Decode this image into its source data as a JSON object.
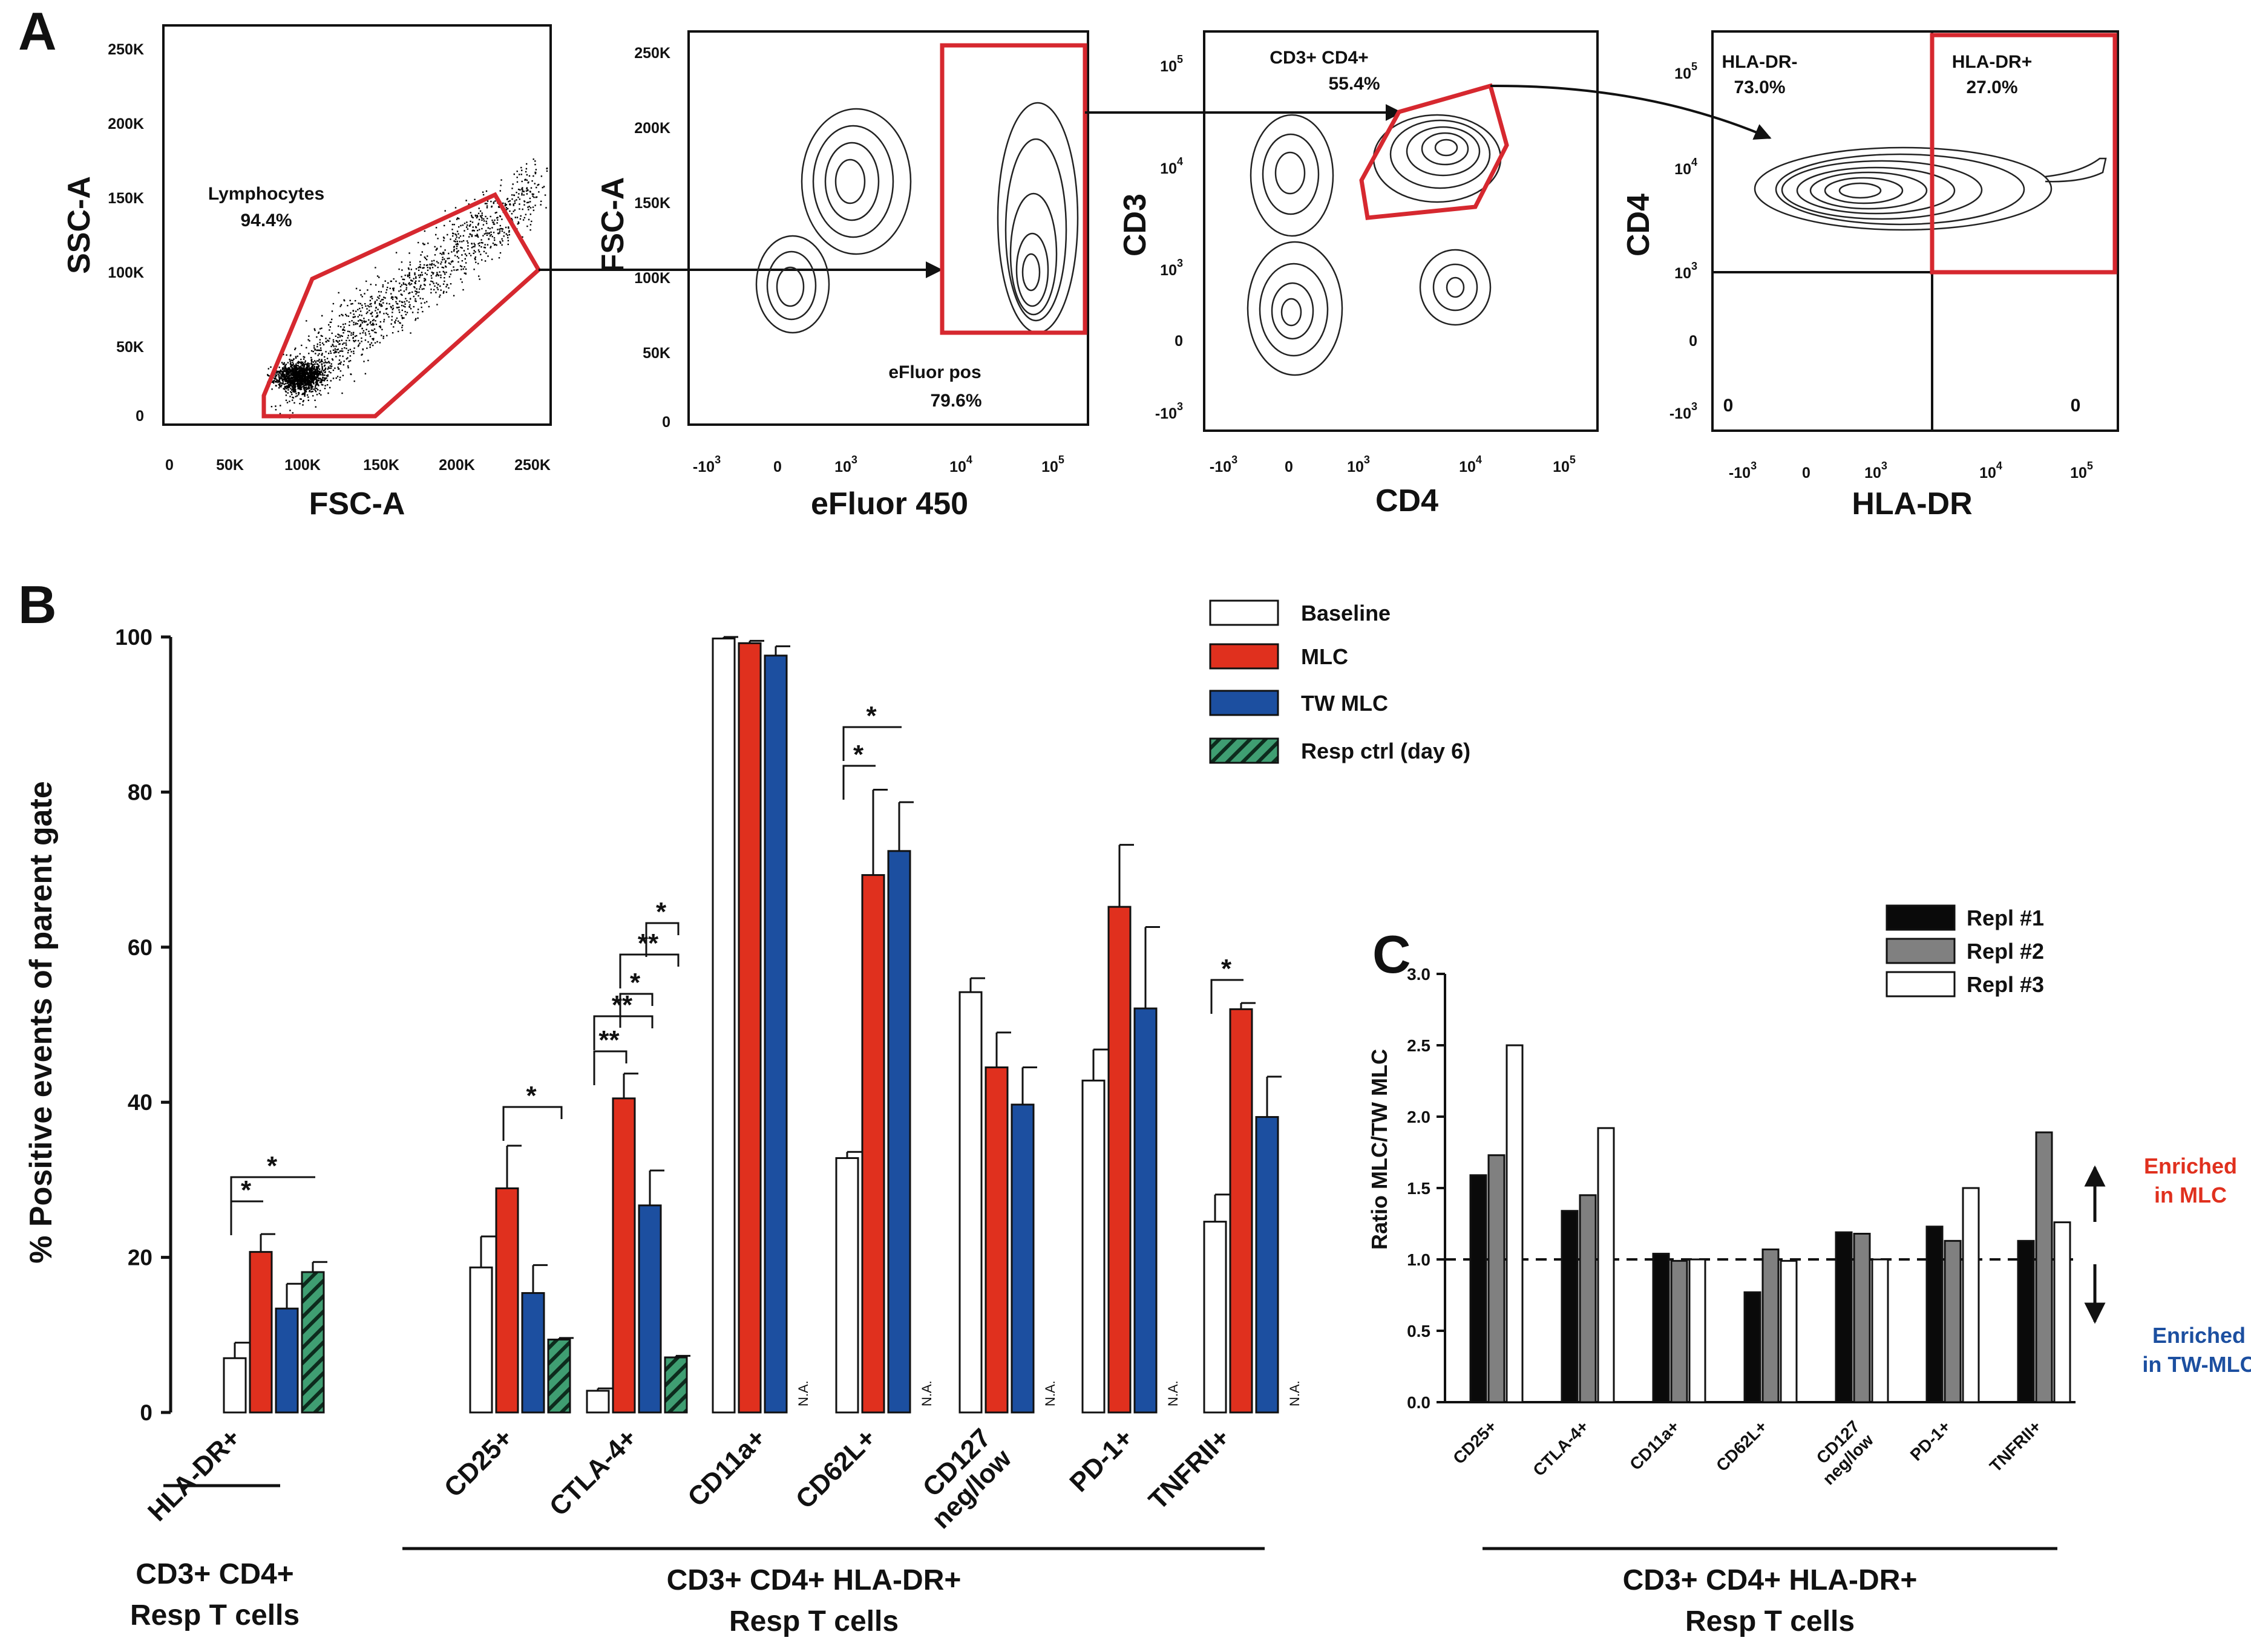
{
  "colors": {
    "baseline": "#ffffff",
    "mlc": "#e0301e",
    "tw_mlc": "#1c4fa0",
    "resp_ctrl": "#3f9e72",
    "gate": "#d6282f",
    "repl1": "#0a0a0a",
    "repl2": "#808080",
    "repl3": "#ffffff",
    "enriched_mlc": "#e0301e",
    "enriched_tw": "#1c4fa0"
  },
  "panel_a": {
    "label": "A",
    "plots": [
      {
        "xlabel": "FSC-A",
        "ylabel": "SSC-A",
        "xticks": [
          "0",
          "50K",
          "100K",
          "150K",
          "200K",
          "250K"
        ],
        "yticks": [
          "250K",
          "200K",
          "150K",
          "100K",
          "50K",
          "0"
        ],
        "gate_name": "Lymphocytes",
        "gate_pct": "94.4%"
      },
      {
        "xlabel": "eFluor 450",
        "ylabel": "FSC-A",
        "xticks": [
          "-10",
          "0",
          "10",
          "10",
          "10"
        ],
        "xtick_exps": [
          "3",
          "",
          "3",
          "4",
          "5"
        ],
        "yticks": [
          "250K",
          "200K",
          "150K",
          "100K",
          "50K",
          "0"
        ],
        "gate_name": "eFluor pos",
        "gate_pct": "79.6%"
      },
      {
        "xlabel": "CD4",
        "ylabel": "CD3",
        "xticks": [
          "-10",
          "0",
          "10",
          "10",
          "10"
        ],
        "xtick_exps": [
          "3",
          "",
          "3",
          "4",
          "5"
        ],
        "yticks": [
          "10",
          "10",
          "10",
          "0",
          "-10"
        ],
        "ytick_exps": [
          "5",
          "4",
          "3",
          "",
          "3"
        ],
        "gate_name": "CD3+ CD4+",
        "gate_pct": "55.4%"
      },
      {
        "xlabel": "HLA-DR",
        "ylabel": "CD4",
        "xticks": [
          "-10",
          "0",
          "10",
          "10",
          "10"
        ],
        "xtick_exps": [
          "3",
          "",
          "3",
          "4",
          "5"
        ],
        "yticks": [
          "10",
          "10",
          "10",
          "0",
          "-10"
        ],
        "ytick_exps": [
          "5",
          "4",
          "3",
          "",
          "3"
        ],
        "q_neg_name": "HLA-DR-",
        "q_neg_pct": "73.0%",
        "q_pos_name": "HLA-DR+",
        "q_pos_pct": "27.0%",
        "q_ll": "0",
        "q_lr": "0"
      }
    ]
  },
  "chart_data": [
    {
      "panel": "B",
      "type": "bar",
      "ylabel": "% Positive events of parent gate",
      "ylim": [
        0,
        100
      ],
      "yticks": [
        "0",
        "20",
        "40",
        "60",
        "80",
        "100"
      ],
      "categories": [
        "HLA-DR+",
        "CD25+",
        "CTLA-4+",
        "CD11a+",
        "CD62L+",
        "CD127 neg/low",
        "PD-1+",
        "TNFRII+"
      ],
      "category_lines": [
        [
          "HLA-DR+"
        ],
        [
          "CD25+"
        ],
        [
          "CTLA-4+"
        ],
        [
          "CD11a+"
        ],
        [
          "CD62L+"
        ],
        [
          "CD127",
          "neg/low"
        ],
        [
          "PD-1+"
        ],
        [
          "TNFRII+"
        ]
      ],
      "series": [
        {
          "name": "Baseline",
          "values": [
            7.0,
            18.7,
            2.8,
            99.8,
            32.8,
            54.2,
            42.8,
            24.6
          ],
          "errors": [
            2.0,
            4.0,
            0.3,
            0.2,
            0.8,
            1.8,
            4.0,
            3.5
          ]
        },
        {
          "name": "MLC",
          "values": [
            20.7,
            28.9,
            40.5,
            99.2,
            69.3,
            44.5,
            65.2,
            52.0
          ],
          "errors": [
            2.3,
            5.5,
            3.2,
            0.3,
            11.0,
            4.5,
            8.0,
            0.8
          ]
        },
        {
          "name": "TW MLC",
          "values": [
            13.4,
            15.4,
            26.7,
            97.6,
            72.4,
            39.7,
            52.1,
            38.1
          ],
          "errors": [
            3.2,
            3.6,
            4.5,
            1.2,
            6.3,
            4.8,
            10.5,
            5.2
          ]
        },
        {
          "name": "Resp ctrl (day 6)",
          "values": [
            18.1,
            9.4,
            7.1,
            null,
            null,
            null,
            null,
            null
          ],
          "errors": [
            1.3,
            0.2,
            0.2,
            null,
            null,
            null,
            null,
            null
          ]
        }
      ],
      "na_label": "N.A.",
      "significance": [
        {
          "category": "HLA-DR+",
          "from": "Baseline",
          "to": "MLC",
          "label": "*"
        },
        {
          "category": "HLA-DR+",
          "from": "Baseline",
          "to": "Resp ctrl (day 6)",
          "label": "*"
        },
        {
          "category": "CD25+",
          "from": "MLC",
          "to": "Resp ctrl (day 6)",
          "label": "*"
        },
        {
          "category": "CTLA-4+",
          "from": "Baseline",
          "to": "TW MLC",
          "label": "**"
        },
        {
          "category": "CTLA-4+",
          "from": "Baseline",
          "to": "MLC",
          "label": "**"
        },
        {
          "category": "CTLA-4+",
          "from": "MLC",
          "to": "TW MLC",
          "label": "*"
        },
        {
          "category": "CTLA-4+",
          "from": "MLC",
          "to": "Resp ctrl (day 6)",
          "label": "**"
        },
        {
          "category": "CTLA-4+",
          "from": "TW MLC",
          "to": "Resp ctrl (day 6)",
          "label": "*"
        },
        {
          "category": "CD62L+",
          "from": "Baseline",
          "to": "MLC",
          "label": "*"
        },
        {
          "category": "CD62L+",
          "from": "Baseline",
          "to": "TW MLC",
          "label": "*"
        },
        {
          "category": "TNFRII+",
          "from": "Baseline",
          "to": "MLC",
          "label": "*"
        }
      ],
      "groups": [
        {
          "line1": "CD3+ CD4+",
          "line2": "Resp T cells"
        },
        {
          "line1": "CD3+ CD4+ HLA-DR+",
          "line2": "Resp T cells"
        }
      ],
      "legend": "top-right"
    },
    {
      "panel": "C",
      "type": "bar",
      "ylabel": "Ratio MLC/TW MLC",
      "ylim": [
        0,
        3.0
      ],
      "yticks": [
        "0.0",
        "0.5",
        "1.0",
        "1.5",
        "2.0",
        "2.5",
        "3.0"
      ],
      "reference_line": 1.0,
      "categories": [
        "CD25+",
        "CTLA-4+",
        "CD11a+",
        "CD62L+",
        "CD127 neg/low",
        "PD-1+",
        "TNFRII+"
      ],
      "category_lines": [
        [
          "CD25+"
        ],
        [
          "CTLA-4+"
        ],
        [
          "CD11a+"
        ],
        [
          "CD62L+"
        ],
        [
          "CD127",
          "neg/low"
        ],
        [
          "PD-1+"
        ],
        [
          "TNFRII+"
        ]
      ],
      "series": [
        {
          "name": "Repl #1",
          "values": [
            1.59,
            1.34,
            1.04,
            0.77,
            1.19,
            1.23,
            1.13
          ]
        },
        {
          "name": "Repl #2",
          "values": [
            1.73,
            1.45,
            0.99,
            1.07,
            1.18,
            1.13,
            1.89
          ]
        },
        {
          "name": "Repl #3",
          "values": [
            2.5,
            1.92,
            1.0,
            0.99,
            1.0,
            1.5,
            1.26
          ]
        }
      ],
      "annotations": {
        "up_line1": "Enriched",
        "up_line2": "in MLC",
        "down_line1": "Enriched",
        "down_line2": "in TW-MLC"
      },
      "group": {
        "line1": "CD3+ CD4+ HLA-DR+",
        "line2": "Resp T cells"
      },
      "legend": "top-right"
    }
  ],
  "panel_labels": {
    "b": "B",
    "c": "C"
  }
}
